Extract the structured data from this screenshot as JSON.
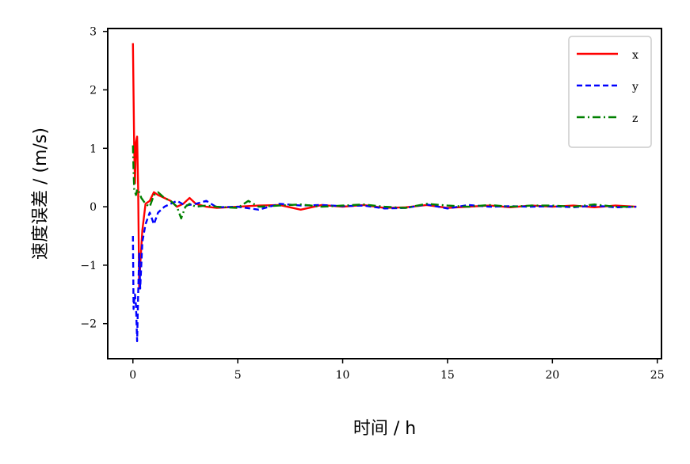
{
  "chart_data": {
    "type": "line",
    "title": "",
    "xlabel": "时间 / h",
    "ylabel": "速度误差 / (m/s)",
    "xlim": [
      -1.2,
      25.2
    ],
    "ylim": [
      -2.6,
      3.05
    ],
    "x_ticks": [
      0,
      5,
      10,
      15,
      20,
      25
    ],
    "y_ticks": [
      -2,
      -1,
      0,
      1,
      2,
      3
    ],
    "x_tick_labels": [
      "0",
      "5",
      "10",
      "15",
      "20",
      "25"
    ],
    "y_tick_labels": [
      "−2",
      "−1",
      "0",
      "1",
      "2",
      "3"
    ],
    "grid": false,
    "legend_position": "top-right",
    "series": [
      {
        "name": "x",
        "color": "#ff0000",
        "style": "solid",
        "x": [
          0,
          0.03,
          0.06,
          0.1,
          0.15,
          0.2,
          0.25,
          0.3,
          0.35,
          0.45,
          0.6,
          0.8,
          1.0,
          1.2,
          1.5,
          1.8,
          2.1,
          2.4,
          2.7,
          3.0,
          3.5,
          4,
          5,
          6,
          7,
          8,
          9,
          10,
          11,
          12,
          13,
          14,
          15,
          16,
          17,
          18,
          19,
          20,
          21,
          22,
          23,
          24
        ],
        "values": [
          2.8,
          1.9,
          1.0,
          0.4,
          1.1,
          1.2,
          0.3,
          -1.4,
          -1.0,
          -0.4,
          0.05,
          0.1,
          0.25,
          0.2,
          0.15,
          0.1,
          0.0,
          0.05,
          0.15,
          0.05,
          0.0,
          -0.02,
          0.0,
          0.02,
          0.03,
          -0.05,
          0.03,
          0.0,
          0.03,
          -0.02,
          -0.01,
          0.03,
          -0.02,
          0.0,
          0.02,
          -0.01,
          0.02,
          0.0,
          0.02,
          -0.01,
          0.02,
          0.0
        ]
      },
      {
        "name": "y",
        "color": "#0000ff",
        "style": "dashed",
        "x": [
          0,
          0.03,
          0.06,
          0.1,
          0.15,
          0.2,
          0.25,
          0.3,
          0.35,
          0.45,
          0.6,
          0.8,
          1.0,
          1.2,
          1.5,
          1.8,
          2.1,
          2.5,
          3.0,
          3.5,
          4,
          5,
          6,
          7,
          8,
          9,
          10,
          11,
          12,
          13,
          14,
          15,
          16,
          17,
          18,
          19,
          20,
          21,
          22,
          23,
          24
        ],
        "values": [
          -0.5,
          -1.75,
          -1.6,
          -1.5,
          -1.7,
          -2.3,
          -1.5,
          -0.8,
          -1.4,
          -0.6,
          -0.3,
          -0.1,
          -0.3,
          -0.1,
          0.0,
          0.05,
          0.1,
          0.02,
          0.05,
          0.1,
          -0.01,
          0.0,
          -0.05,
          0.05,
          0.02,
          0.03,
          0.01,
          0.02,
          -0.03,
          -0.02,
          0.04,
          -0.03,
          0.03,
          0.0,
          0.01,
          0.0,
          0.01,
          -0.01,
          0.02,
          -0.01,
          0.0
        ]
      },
      {
        "name": "z",
        "color": "#008000",
        "style": "dashdot",
        "x": [
          0,
          0.03,
          0.06,
          0.1,
          0.15,
          0.2,
          0.3,
          0.4,
          0.5,
          0.6,
          0.8,
          1.0,
          1.2,
          1.5,
          1.8,
          2.1,
          2.3,
          2.5,
          2.7,
          3.0,
          3.5,
          4,
          5,
          5.5,
          6,
          7,
          8,
          9,
          10,
          11,
          12,
          13,
          14,
          15,
          16,
          17,
          18,
          19,
          20,
          21,
          22,
          23,
          24
        ],
        "values": [
          1.05,
          0.6,
          0.3,
          0.25,
          0.2,
          0.3,
          0.25,
          0.15,
          0.1,
          0.05,
          0.0,
          0.2,
          0.25,
          0.15,
          0.1,
          0.0,
          -0.2,
          0.0,
          0.05,
          0.0,
          0.02,
          0.0,
          -0.02,
          0.1,
          0.0,
          0.02,
          0.04,
          0.0,
          0.02,
          0.04,
          0.0,
          -0.02,
          0.05,
          0.02,
          0.0,
          0.03,
          0.0,
          0.02,
          0.02,
          0.0,
          0.04,
          0.0,
          0.0
        ]
      }
    ]
  }
}
